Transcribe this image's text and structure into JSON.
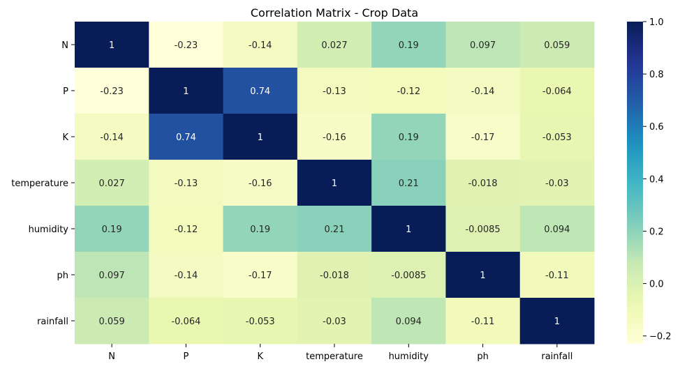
{
  "chart_data": {
    "type": "heatmap",
    "title": "Correlation Matrix - Crop Data",
    "xlabel": "",
    "ylabel": "",
    "rows": [
      "N",
      "P",
      "K",
      "temperature",
      "humidity",
      "ph",
      "rainfall"
    ],
    "columns": [
      "N",
      "P",
      "K",
      "temperature",
      "humidity",
      "ph",
      "rainfall"
    ],
    "values": [
      [
        1,
        -0.23,
        -0.14,
        0.027,
        0.19,
        0.097,
        0.059
      ],
      [
        -0.23,
        1,
        0.74,
        -0.13,
        -0.12,
        -0.14,
        -0.064
      ],
      [
        -0.14,
        0.74,
        1,
        -0.16,
        0.19,
        -0.17,
        -0.053
      ],
      [
        0.027,
        -0.13,
        -0.16,
        1,
        0.21,
        -0.018,
        -0.03
      ],
      [
        0.19,
        -0.12,
        0.19,
        0.21,
        1,
        -0.0085,
        0.094
      ],
      [
        0.097,
        -0.14,
        -0.17,
        -0.018,
        -0.0085,
        1,
        -0.11
      ],
      [
        0.059,
        -0.064,
        -0.053,
        -0.03,
        0.094,
        -0.11,
        1
      ]
    ],
    "annotations": [
      [
        "1",
        "-0.23",
        "-0.14",
        "0.027",
        "0.19",
        "0.097",
        "0.059"
      ],
      [
        "-0.23",
        "1",
        "0.74",
        "-0.13",
        "-0.12",
        "-0.14",
        "-0.064"
      ],
      [
        "-0.14",
        "0.74",
        "1",
        "-0.16",
        "0.19",
        "-0.17",
        "-0.053"
      ],
      [
        "0.027",
        "-0.13",
        "-0.16",
        "1",
        "0.21",
        "-0.018",
        "-0.03"
      ],
      [
        "0.19",
        "-0.12",
        "0.19",
        "0.21",
        "1",
        "-0.0085",
        "0.094"
      ],
      [
        "0.097",
        "-0.14",
        "-0.17",
        "-0.018",
        "-0.0085",
        "1",
        "-0.11"
      ],
      [
        "0.059",
        "-0.064",
        "-0.053",
        "-0.03",
        "0.094",
        "-0.11",
        "1"
      ]
    ],
    "colormap": "YlGnBu",
    "vmin": -0.23,
    "vmax": 1.0,
    "colorbar": {
      "ticks": [
        1.0,
        0.8,
        0.6,
        0.4,
        0.2,
        0.0,
        -0.2
      ],
      "tick_labels": [
        "1.0",
        "0.8",
        "0.6",
        "0.4",
        "0.2",
        "0.0",
        "−0.2"
      ]
    },
    "grid": false,
    "legend": "colorbar-right"
  }
}
